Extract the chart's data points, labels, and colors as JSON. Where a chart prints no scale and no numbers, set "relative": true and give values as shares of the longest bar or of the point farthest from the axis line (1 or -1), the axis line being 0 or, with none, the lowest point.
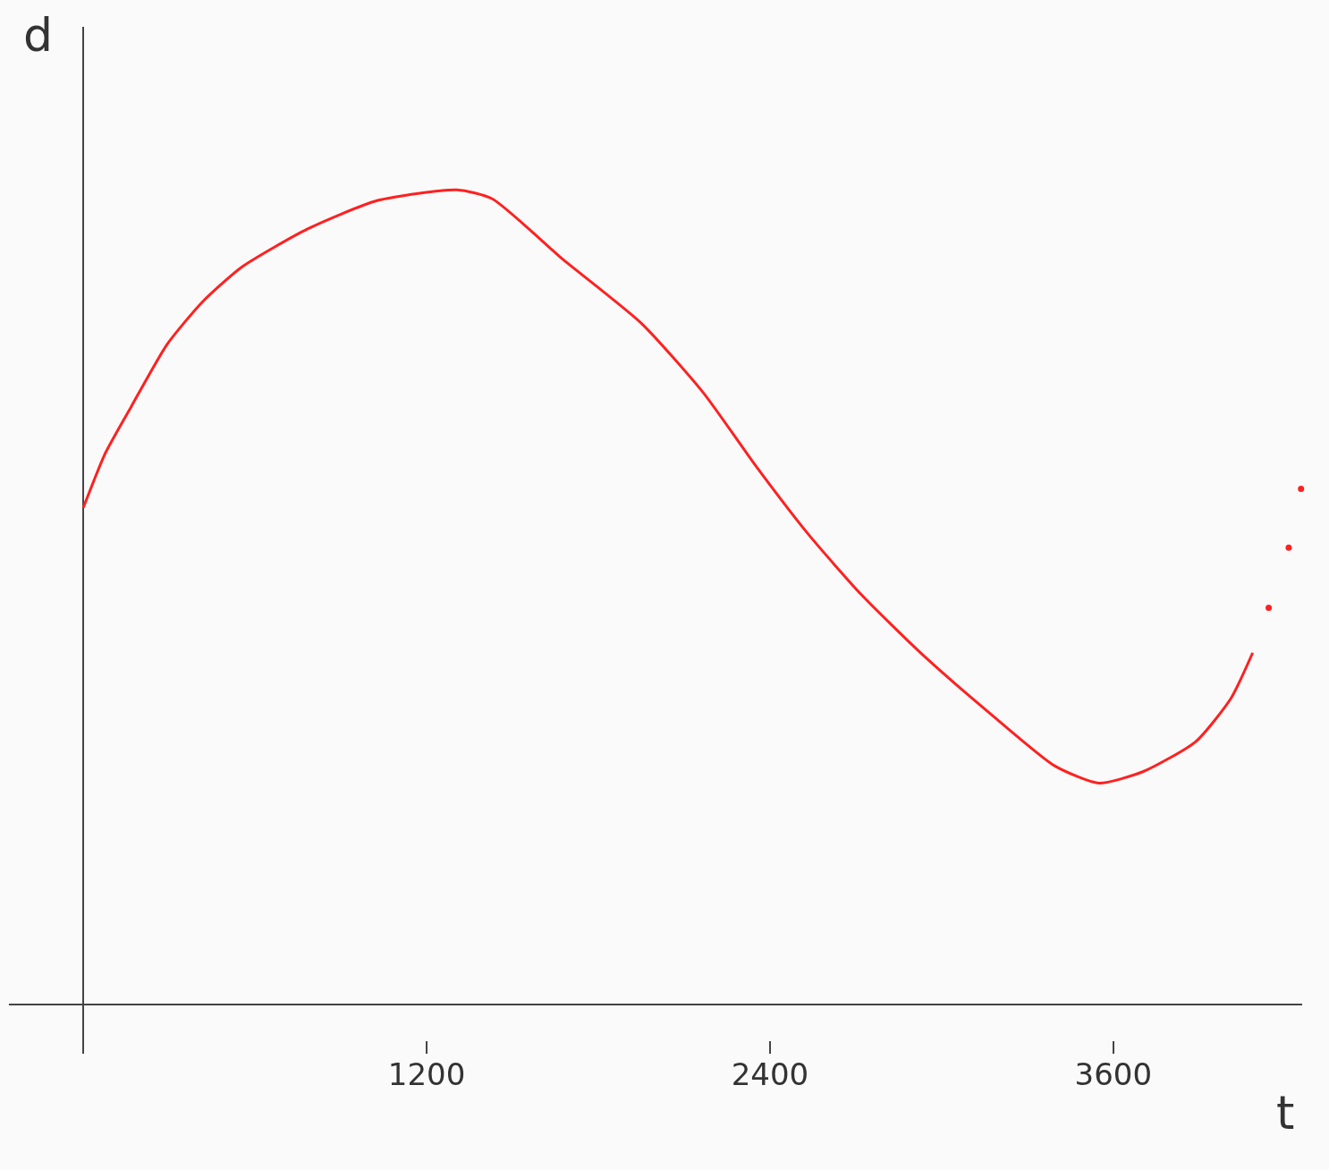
{
  "chart_data": {
    "type": "line",
    "xlabel": "t",
    "ylabel": "d",
    "relative": true,
    "xlim": [
      -260,
      4260
    ],
    "xticks": [
      1200,
      2400,
      3600
    ],
    "grid": false,
    "series": [
      {
        "color": "#ff2020",
        "x": [
          0,
          77,
          169,
          292,
          415,
          553,
          784,
          1029,
          1306,
          1429,
          1675,
          1951,
          2167,
          2351,
          2535,
          2720,
          2935,
          3181,
          3396,
          3549,
          3703,
          3888,
          4011,
          4087
        ],
        "values": [
          0.61,
          0.677,
          0.735,
          0.81,
          0.862,
          0.905,
          0.952,
          0.987,
          1.0,
          0.989,
          0.915,
          0.836,
          0.751,
          0.661,
          0.577,
          0.503,
          0.429,
          0.354,
          0.293,
          0.272,
          0.286,
          0.323,
          0.376,
          0.432
        ]
      },
      {
        "type": "scatter",
        "color": "#ff2020",
        "x": [
          4143,
          4213,
          4256
        ],
        "values": [
          0.487,
          0.561,
          0.633
        ]
      }
    ]
  }
}
